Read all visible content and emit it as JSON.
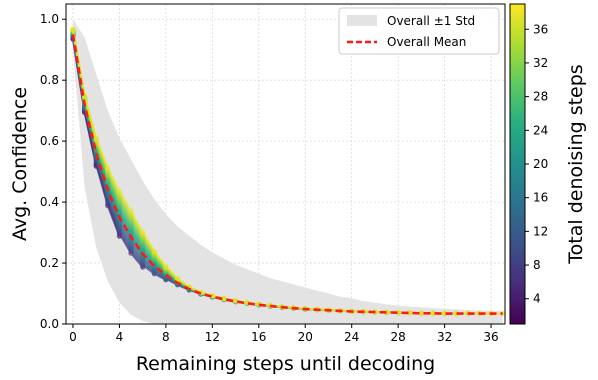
{
  "chart_data": {
    "type": "line",
    "xlabel": "Remaining steps until decoding",
    "ylabel": "Avg. Confidence",
    "xlim": [
      -0.6,
      37.2
    ],
    "ylim": [
      0.0,
      1.05
    ],
    "x_ticks": [
      0,
      4,
      8,
      12,
      16,
      20,
      24,
      28,
      32,
      36
    ],
    "y_ticks": [
      0.0,
      0.2,
      0.4,
      0.6,
      0.8,
      1.0
    ],
    "grid": true,
    "legend_position": "top-right",
    "legend": [
      {
        "label": "Overall ±1 Std",
        "kind": "band",
        "color": "#e0e0e0"
      },
      {
        "label": "Overall Mean",
        "kind": "dashed-line",
        "color": "#ff0000"
      }
    ],
    "colorbar": {
      "label": "Total denoising steps",
      "range": [
        1,
        39
      ],
      "ticks": [
        4,
        8,
        12,
        16,
        20,
        24,
        28,
        32,
        36
      ],
      "colormap": "viridis"
    },
    "mean": {
      "x": [
        0,
        1,
        2,
        3,
        4,
        5,
        6,
        7,
        8,
        9,
        10,
        11,
        12,
        13,
        14,
        15,
        16,
        17,
        18,
        19,
        20,
        21,
        22,
        23,
        24,
        25,
        26,
        27,
        28,
        29,
        30,
        31,
        32,
        33,
        34,
        35,
        36,
        37
      ],
      "y": [
        0.95,
        0.72,
        0.56,
        0.44,
        0.35,
        0.285,
        0.23,
        0.19,
        0.16,
        0.135,
        0.115,
        0.1,
        0.09,
        0.081,
        0.074,
        0.068,
        0.063,
        0.059,
        0.055,
        0.052,
        0.049,
        0.047,
        0.045,
        0.043,
        0.041,
        0.04,
        0.039,
        0.038,
        0.037,
        0.036,
        0.035,
        0.035,
        0.034,
        0.034,
        0.034,
        0.034,
        0.034,
        0.034
      ]
    },
    "std_band": {
      "x": [
        0,
        1,
        2,
        3,
        4,
        5,
        6,
        7,
        8,
        9,
        10,
        11,
        12,
        13,
        14,
        15,
        16,
        17,
        18,
        19,
        20,
        21,
        22,
        23,
        24,
        25,
        26,
        27,
        28,
        29,
        30,
        31,
        32,
        33,
        34,
        35,
        36,
        37
      ],
      "lower": [
        0.9,
        0.45,
        0.25,
        0.14,
        0.07,
        0.03,
        0.01,
        0.0,
        0.0,
        0.0,
        0.0,
        0.0,
        0.0,
        0.0,
        0.0,
        0.0,
        0.0,
        0.0,
        0.0,
        0.0,
        0.0,
        0.0,
        0.0,
        0.0,
        0.0,
        0.0,
        0.0,
        0.0,
        0.0,
        0.0,
        0.0,
        0.0,
        0.0,
        0.0,
        0.0,
        0.0,
        0.0,
        0.0
      ],
      "upper": [
        1.0,
        0.94,
        0.82,
        0.7,
        0.61,
        0.54,
        0.47,
        0.41,
        0.36,
        0.32,
        0.29,
        0.26,
        0.235,
        0.215,
        0.195,
        0.18,
        0.165,
        0.15,
        0.14,
        0.13,
        0.12,
        0.11,
        0.1,
        0.09,
        0.085,
        0.075,
        0.07,
        0.065,
        0.06,
        0.057,
        0.055,
        0.052,
        0.05,
        0.048,
        0.046,
        0.045,
        0.044,
        0.043
      ]
    },
    "curve_groups": [
      {
        "total_steps": 2,
        "length": 3
      },
      {
        "total_steps": 4,
        "length": 5
      },
      {
        "total_steps": 6,
        "length": 7
      },
      {
        "total_steps": 8,
        "length": 9
      },
      {
        "total_steps": 10,
        "length": 11
      },
      {
        "total_steps": 12,
        "length": 13
      },
      {
        "total_steps": 14,
        "length": 15
      },
      {
        "total_steps": 16,
        "length": 17
      },
      {
        "total_steps": 18,
        "length": 19
      },
      {
        "total_steps": 20,
        "length": 21
      },
      {
        "total_steps": 22,
        "length": 23
      },
      {
        "total_steps": 24,
        "length": 25
      },
      {
        "total_steps": 26,
        "length": 27
      },
      {
        "total_steps": 28,
        "length": 29
      },
      {
        "total_steps": 30,
        "length": 31
      },
      {
        "total_steps": 32,
        "length": 33
      },
      {
        "total_steps": 34,
        "length": 35
      },
      {
        "total_steps": 36,
        "length": 37
      },
      {
        "total_steps": 38,
        "length": 38
      }
    ]
  }
}
